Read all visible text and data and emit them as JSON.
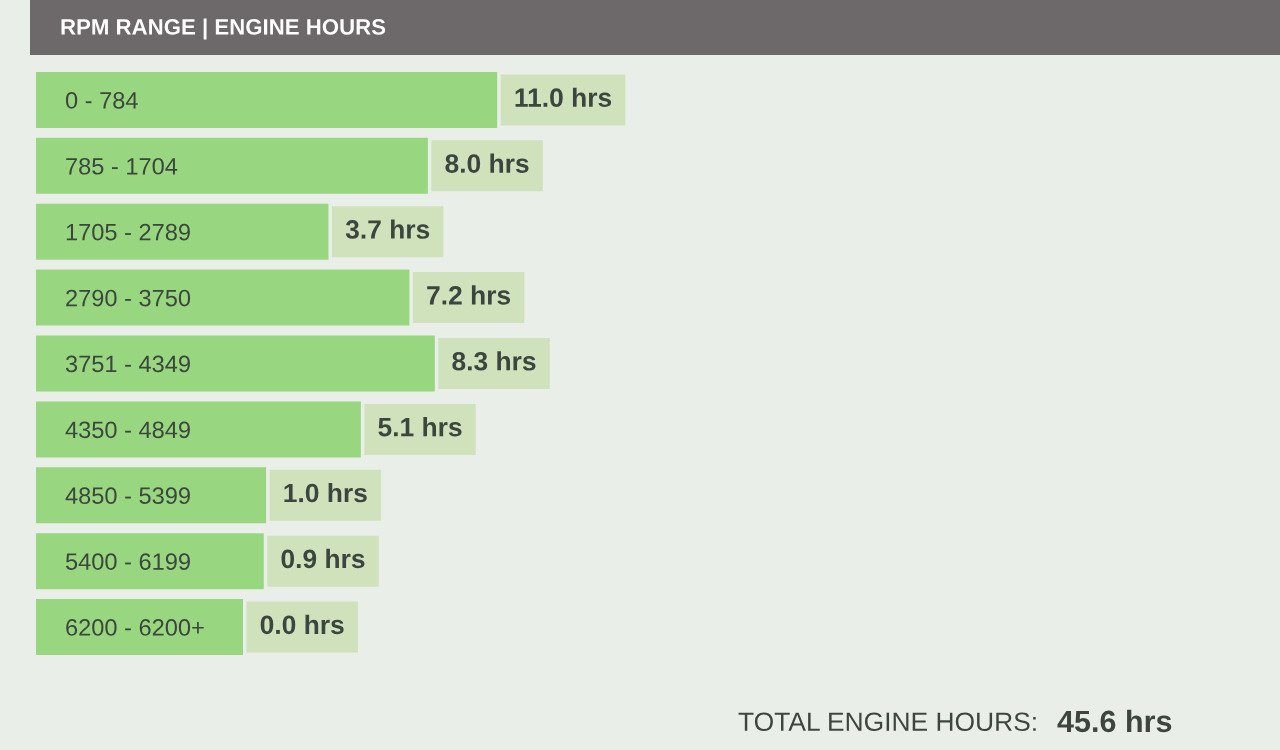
{
  "chart_data": {
    "type": "bar",
    "orientation": "horizontal",
    "title": "RPM RANGE | ENGINE HOURS",
    "categories": [
      "0 - 784",
      "785 - 1704",
      "1705 - 2789",
      "2790 - 3750",
      "3751 - 4349",
      "4350 - 4849",
      "4850 - 5399",
      "5400 - 6199",
      "6200 - 6200+"
    ],
    "values": [
      11.0,
      8.0,
      3.7,
      7.2,
      8.3,
      5.1,
      1.0,
      0.9,
      0.0
    ],
    "value_labels": [
      "11.0 hrs",
      "8.0 hrs",
      "3.7 hrs",
      "7.2 hrs",
      "8.3 hrs",
      "5.1 hrs",
      "1.0 hrs",
      "0.9 hrs",
      "0.0 hrs"
    ],
    "color": "#98d77f",
    "tick_labels": "y",
    "annotations": [
      "TOTAL ENGINE HOURS:",
      "45.6 hrs"
    ]
  }
}
